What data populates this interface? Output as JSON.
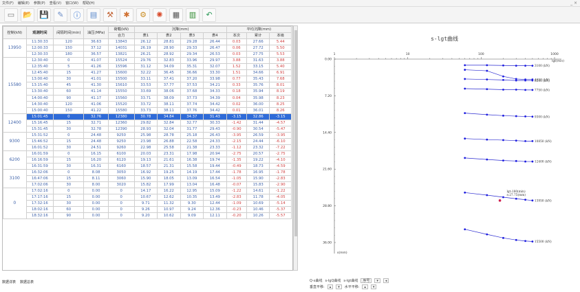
{
  "menu": [
    "文件(F)",
    "编辑(E)",
    "参数(P)",
    "查看(V)",
    "窗口(W)",
    "帮助(H)"
  ],
  "window_controls": "_ ×",
  "toolbar_icons": [
    "new-icon",
    "open-icon",
    "save-icon",
    "edit-icon",
    "info-icon",
    "clipboard-icon",
    "tool-icon",
    "settings-icon",
    "gear-icon",
    "fire-icon",
    "grid-icon",
    "chart-icon",
    "undo-icon"
  ],
  "table": {
    "h1": [
      "控制(kN)",
      "观测时间",
      "间隔时间(min)",
      "油压(MPa)",
      "荷载(kN)",
      "沉降(mm)",
      "平均沉降(mm)"
    ],
    "h2": [
      "合力",
      "表1",
      "表2",
      "表3",
      "表4",
      "本次",
      "累计",
      "本级"
    ],
    "groups": [
      {
        "load": "13950",
        "rows": [
          [
            "11:30:33",
            "120",
            "36.63",
            "13843",
            "26.12",
            "28.81",
            "29.28",
            "26.44",
            "0.03",
            "27.66",
            "5.44"
          ],
          [
            "12:00:33",
            "150",
            "37.12",
            "14031",
            "26.19",
            "28.90",
            "29.33",
            "26.47",
            "0.06",
            "27.72",
            "5.50"
          ],
          [
            "12:30:33",
            "180",
            "36.57",
            "13821",
            "26.21",
            "28.92",
            "29.34",
            "26.53",
            "0.03",
            "27.75",
            "5.53"
          ]
        ]
      },
      {
        "load": "15580",
        "rows": [
          [
            "12:30:40",
            "0",
            "41.07",
            "15524",
            "29.76",
            "32.83",
            "33.96",
            "29.97",
            "3.88",
            "31.63",
            "3.88"
          ],
          [
            "12:35:40",
            "5",
            "41.26",
            "15596",
            "31.12",
            "34.09",
            "35.31",
            "32.07",
            "1.52",
            "33.15",
            "5.40"
          ],
          [
            "12:45:40",
            "15",
            "41.27",
            "15600",
            "32.22",
            "36.45",
            "36.66",
            "33.30",
            "1.51",
            "34.66",
            "6.91"
          ],
          [
            "13:00:40",
            "30",
            "41.01",
            "15500",
            "33.11",
            "37.41",
            "37.20",
            "33.98",
            "0.77",
            "35.43",
            "7.68"
          ],
          [
            "13:15:40",
            "45",
            "41.30",
            "15610",
            "33.53",
            "37.77",
            "37.53",
            "34.21",
            "0.33",
            "35.76",
            "8.01"
          ],
          [
            "13:30:40",
            "60",
            "41.14",
            "15550",
            "33.69",
            "38.06",
            "37.68",
            "34.33",
            "0.18",
            "35.94",
            "8.19"
          ],
          [
            "14:00:40",
            "90",
            "41.17",
            "15560",
            "33.71",
            "38.09",
            "37.73",
            "34.39",
            "0.04",
            "35.98",
            "8.23"
          ],
          [
            "14:30:40",
            "120",
            "41.06",
            "15520",
            "33.72",
            "38.11",
            "37.74",
            "34.42",
            "0.02",
            "36.00",
            "8.25"
          ],
          [
            "15:00:40",
            "150",
            "41.22",
            "15580",
            "33.73",
            "38.11",
            "37.76",
            "34.42",
            "0.01",
            "36.01",
            "8.26"
          ]
        ]
      },
      {
        "load": "12400",
        "rows": [
          [
            "15:01:45",
            "0",
            "32.76",
            "12380",
            "30.78",
            "34.84",
            "34.37",
            "31.43",
            "-3.15",
            "32.86",
            "-3.15"
          ],
          [
            "15:16:45",
            "15",
            "32.71",
            "12360",
            "29.82",
            "32.84",
            "32.77",
            "30.33",
            "-1.42",
            "31.44",
            "-4.57"
          ],
          [
            "15:31:45",
            "30",
            "32.78",
            "12390",
            "28.93",
            "32.04",
            "31.77",
            "29.43",
            "-0.90",
            "30.54",
            "-5.47"
          ]
        ]
      },
      {
        "load": "9300",
        "rows": [
          [
            "15:31:52",
            "0",
            "24.48",
            "9250",
            "25.98",
            "28.78",
            "25.18",
            "26.43",
            "-3.95",
            "26.59",
            "-3.95"
          ],
          [
            "15:46:52",
            "15",
            "24.48",
            "9250",
            "23.98",
            "26.88",
            "22.58",
            "24.33",
            "-2.15",
            "24.44",
            "-6.10"
          ],
          [
            "16:01:52",
            "30",
            "24.51",
            "9260",
            "22.98",
            "25.58",
            "21.38",
            "23.33",
            "-1.12",
            "23.32",
            "-7.22"
          ]
        ]
      },
      {
        "load": "6200",
        "rows": [
          [
            "16:01:59",
            "0",
            "16.15",
            "6100",
            "20.03",
            "23.31",
            "17.98",
            "20.94",
            "-2.75",
            "20.57",
            "-2.75"
          ],
          [
            "16:16:59",
            "15",
            "16.20",
            "6120",
            "19.13",
            "21.61",
            "16.38",
            "19.74",
            "-1.35",
            "19.22",
            "-4.10"
          ],
          [
            "16:31:59",
            "30",
            "16.31",
            "6160",
            "18.57",
            "21.31",
            "15.58",
            "19.44",
            "-0.49",
            "18.73",
            "-4.59"
          ]
        ]
      },
      {
        "load": "3100",
        "rows": [
          [
            "16:32:06",
            "0",
            "8.08",
            "3050",
            "16.92",
            "19.25",
            "14.19",
            "17.44",
            "-1.78",
            "16.95",
            "-1.78"
          ],
          [
            "16:47:06",
            "15",
            "8.11",
            "3060",
            "15.90",
            "18.05",
            "13.09",
            "16.54",
            "-1.05",
            "15.90",
            "-2.83"
          ],
          [
            "17:02:06",
            "30",
            "8.00",
            "3020",
            "15.82",
            "17.99",
            "13.04",
            "16.48",
            "-0.07",
            "15.83",
            "-2.90"
          ]
        ]
      },
      {
        "load": "0",
        "rows": [
          [
            "17:02:16",
            "0",
            "0.00",
            "0",
            "14.17",
            "16.22",
            "12.95",
            "15.09",
            "-1.22",
            "14.61",
            "-1.22"
          ],
          [
            "17:17:16",
            "15",
            "0.00",
            "0",
            "10.67",
            "12.62",
            "10.35",
            "13.49",
            "-2.83",
            "11.78",
            "-4.05"
          ],
          [
            "17:32:16",
            "30",
            "0.00",
            "0",
            "9.71",
            "11.32",
            "9.30",
            "12.44",
            "-1.09",
            "10.69",
            "-5.14"
          ],
          [
            "18:02:16",
            "60",
            "0.00",
            "0",
            "9.26",
            "10.97",
            "9.24",
            "12.36",
            "-0.23",
            "10.46",
            "-5.37"
          ],
          [
            "18:32:16",
            "90",
            "0.00",
            "0",
            "9.20",
            "10.62",
            "9.09",
            "12.11",
            "-0.20",
            "10.26",
            "-5.57"
          ]
        ]
      }
    ]
  },
  "bottom_tabs": [
    "数据详表",
    "数据总表"
  ],
  "chart_data": {
    "type": "line",
    "title": "s-lgt曲线",
    "xlabel": "lgt(min)",
    "ylabel": "s(mm)",
    "x_ticks": [
      "1",
      "10",
      "100",
      "1000"
    ],
    "y_ticks": [
      "0.00",
      "7.20",
      "14.40",
      "21.60",
      "28.80",
      "36.00"
    ],
    "xlim": [
      1,
      1000
    ],
    "ylim": [
      0,
      36
    ],
    "series": [
      {
        "name": "3100 (kN)",
        "x": [
          60,
          120,
          200,
          300,
          400,
          500
        ],
        "y": [
          1.2,
          1.2,
          1.25,
          1.3,
          1.3,
          1.3
        ]
      },
      {
        "name": "4650 (kN)",
        "x": [
          60,
          120,
          200,
          300,
          400,
          500
        ],
        "y": [
          2.1,
          2.3,
          3.4,
          3.9,
          4.0,
          4.0
        ]
      },
      {
        "name": "6200 (kN)",
        "x": [
          60,
          120,
          200,
          300,
          400,
          500
        ],
        "y": [
          3.9,
          4.0,
          4.1,
          4.2,
          4.2,
          4.2
        ]
      },
      {
        "name": "7750 (kN)",
        "x": [
          60,
          120,
          200,
          300,
          400,
          500
        ],
        "y": [
          5.8,
          5.9,
          6.0,
          6.0,
          6.05,
          6.05
        ]
      },
      {
        "name": "9300 (kN)",
        "x": [
          60,
          120,
          200,
          300,
          400,
          500
        ],
        "y": [
          10.6,
          10.9,
          11.1,
          11.2,
          11.25,
          11.3
        ]
      },
      {
        "name": "10850 (kN)",
        "x": [
          60,
          120,
          200,
          300,
          400,
          500
        ],
        "y": [
          15.6,
          15.8,
          15.9,
          16.0,
          16.1,
          16.1
        ]
      },
      {
        "name": "12400 (kN)",
        "x": [
          60,
          120,
          200,
          300,
          400,
          500
        ],
        "y": [
          19.4,
          19.7,
          19.9,
          20.0,
          20.1,
          20.1
        ]
      },
      {
        "name": "13950 (kN)",
        "x": [
          60,
          120,
          200,
          300,
          400,
          500
        ],
        "y": [
          26.2,
          26.7,
          27.1,
          27.4,
          27.6,
          27.75
        ]
      },
      {
        "name": "15500 (kN)",
        "x": [
          60,
          120,
          200,
          300,
          400,
          500
        ],
        "y": [
          33.4,
          34.4,
          35.1,
          35.5,
          35.7,
          35.8
        ]
      }
    ],
    "annotation": {
      "lines": [
        "lgt:180(min)",
        "s:27.75(mm)"
      ],
      "x": 180,
      "y": 27.75
    }
  },
  "chart_controls": {
    "row1": [
      "Q-s曲线",
      "s-lgQ曲线",
      "s-lgt曲线",
      "序号",
      "▾",
      "◂"
    ],
    "row2": [
      "垂直平移:",
      "▴",
      "▾",
      "水平平移:",
      "▴",
      "▾"
    ]
  }
}
